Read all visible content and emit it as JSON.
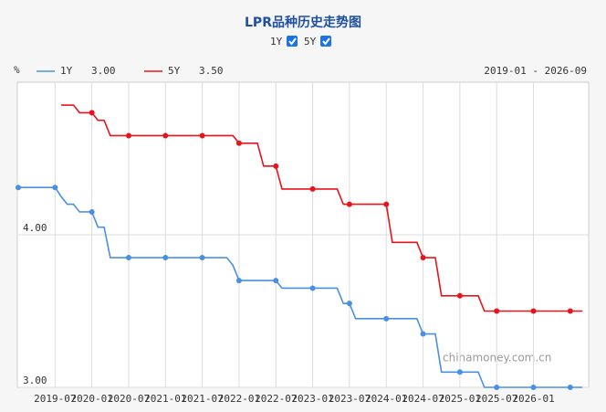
{
  "chart_data": {
    "type": "line",
    "title": "LPR品种历史走势图",
    "unit": "%",
    "range_label": "2019-01 - 2026-09",
    "watermark": "chinamoney.com.cn",
    "x": [
      "2019-01",
      "2019-02",
      "2019-03",
      "2019-04",
      "2019-05",
      "2019-06",
      "2019-07",
      "2019-08",
      "2019-09",
      "2019-10",
      "2019-11",
      "2019-12",
      "2020-01",
      "2020-02",
      "2020-03",
      "2020-04",
      "2020-05",
      "2020-06",
      "2020-07",
      "2020-08",
      "2020-09",
      "2020-10",
      "2020-11",
      "2020-12",
      "2021-01",
      "2021-02",
      "2021-03",
      "2021-04",
      "2021-05",
      "2021-06",
      "2021-07",
      "2021-08",
      "2021-09",
      "2021-10",
      "2021-11",
      "2021-12",
      "2022-01",
      "2022-02",
      "2022-03",
      "2022-04",
      "2022-05",
      "2022-06",
      "2022-07",
      "2022-08",
      "2022-09",
      "2022-10",
      "2022-11",
      "2022-12",
      "2023-01",
      "2023-02",
      "2023-03",
      "2023-04",
      "2023-05",
      "2023-06",
      "2023-07",
      "2023-08",
      "2023-09",
      "2023-10",
      "2023-11",
      "2023-12",
      "2024-01",
      "2024-02",
      "2024-03",
      "2024-04",
      "2024-05",
      "2024-06",
      "2024-07",
      "2024-08",
      "2024-09",
      "2024-10",
      "2024-11",
      "2024-12",
      "2025-01",
      "2025-02",
      "2025-03",
      "2025-04",
      "2025-05",
      "2025-06",
      "2025-07",
      "2025-08",
      "2025-09",
      "2025-10",
      "2025-11",
      "2025-12",
      "2026-01",
      "2026-02",
      "2026-03",
      "2026-04",
      "2026-05",
      "2026-06",
      "2026-07",
      "2026-08",
      "2026-09"
    ],
    "xticks": [
      "2019-07",
      "2020-01",
      "2020-07",
      "2021-01",
      "2021-07",
      "2022-01",
      "2022-07",
      "2023-01",
      "2023-07",
      "2024-01",
      "2024-07",
      "2025-01",
      "2025-07",
      "2026-01"
    ],
    "ylim": [
      3,
      5
    ],
    "yticks": [
      {
        "value": 3,
        "label": "3.00"
      },
      {
        "value": 4,
        "label": "4.00"
      }
    ],
    "marker_every": 6,
    "series": [
      {
        "name": "1Y",
        "color": "#4a90e2",
        "checked": true,
        "latest_label": "3.00",
        "values": [
          4.31,
          4.31,
          4.31,
          4.31,
          4.31,
          4.31,
          4.31,
          4.25,
          4.2,
          4.2,
          4.15,
          4.15,
          4.15,
          4.05,
          4.05,
          3.85,
          3.85,
          3.85,
          3.85,
          3.85,
          3.85,
          3.85,
          3.85,
          3.85,
          3.85,
          3.85,
          3.85,
          3.85,
          3.85,
          3.85,
          3.85,
          3.85,
          3.85,
          3.85,
          3.85,
          3.8,
          3.7,
          3.7,
          3.7,
          3.7,
          3.7,
          3.7,
          3.7,
          3.65,
          3.65,
          3.65,
          3.65,
          3.65,
          3.65,
          3.65,
          3.65,
          3.65,
          3.65,
          3.55,
          3.55,
          3.45,
          3.45,
          3.45,
          3.45,
          3.45,
          3.45,
          3.45,
          3.45,
          3.45,
          3.45,
          3.45,
          3.35,
          3.35,
          3.35,
          3.1,
          3.1,
          3.1,
          3.1,
          3.1,
          3.1,
          3.1,
          3,
          3,
          3,
          3,
          3,
          3,
          3,
          3,
          3,
          3,
          3,
          3,
          3,
          3,
          3,
          3,
          3
        ]
      },
      {
        "name": "5Y",
        "color": "#e8141b",
        "checked": true,
        "latest_label": "3.50",
        "values": [
          null,
          null,
          null,
          null,
          null,
          null,
          null,
          4.85,
          4.85,
          4.85,
          4.8,
          4.8,
          4.8,
          4.75,
          4.75,
          4.65,
          4.65,
          4.65,
          4.65,
          4.65,
          4.65,
          4.65,
          4.65,
          4.65,
          4.65,
          4.65,
          4.65,
          4.65,
          4.65,
          4.65,
          4.65,
          4.65,
          4.65,
          4.65,
          4.65,
          4.65,
          4.6,
          4.6,
          4.6,
          4.6,
          4.45,
          4.45,
          4.45,
          4.3,
          4.3,
          4.3,
          4.3,
          4.3,
          4.3,
          4.3,
          4.3,
          4.3,
          4.3,
          4.2,
          4.2,
          4.2,
          4.2,
          4.2,
          4.2,
          4.2,
          4.2,
          3.95,
          3.95,
          3.95,
          3.95,
          3.95,
          3.85,
          3.85,
          3.85,
          3.6,
          3.6,
          3.6,
          3.6,
          3.6,
          3.6,
          3.6,
          3.5,
          3.5,
          3.5,
          3.5,
          3.5,
          3.5,
          3.5,
          3.5,
          3.5,
          3.5,
          3.5,
          3.5,
          3.5,
          3.5,
          3.5,
          3.5,
          3.5
        ]
      }
    ]
  }
}
